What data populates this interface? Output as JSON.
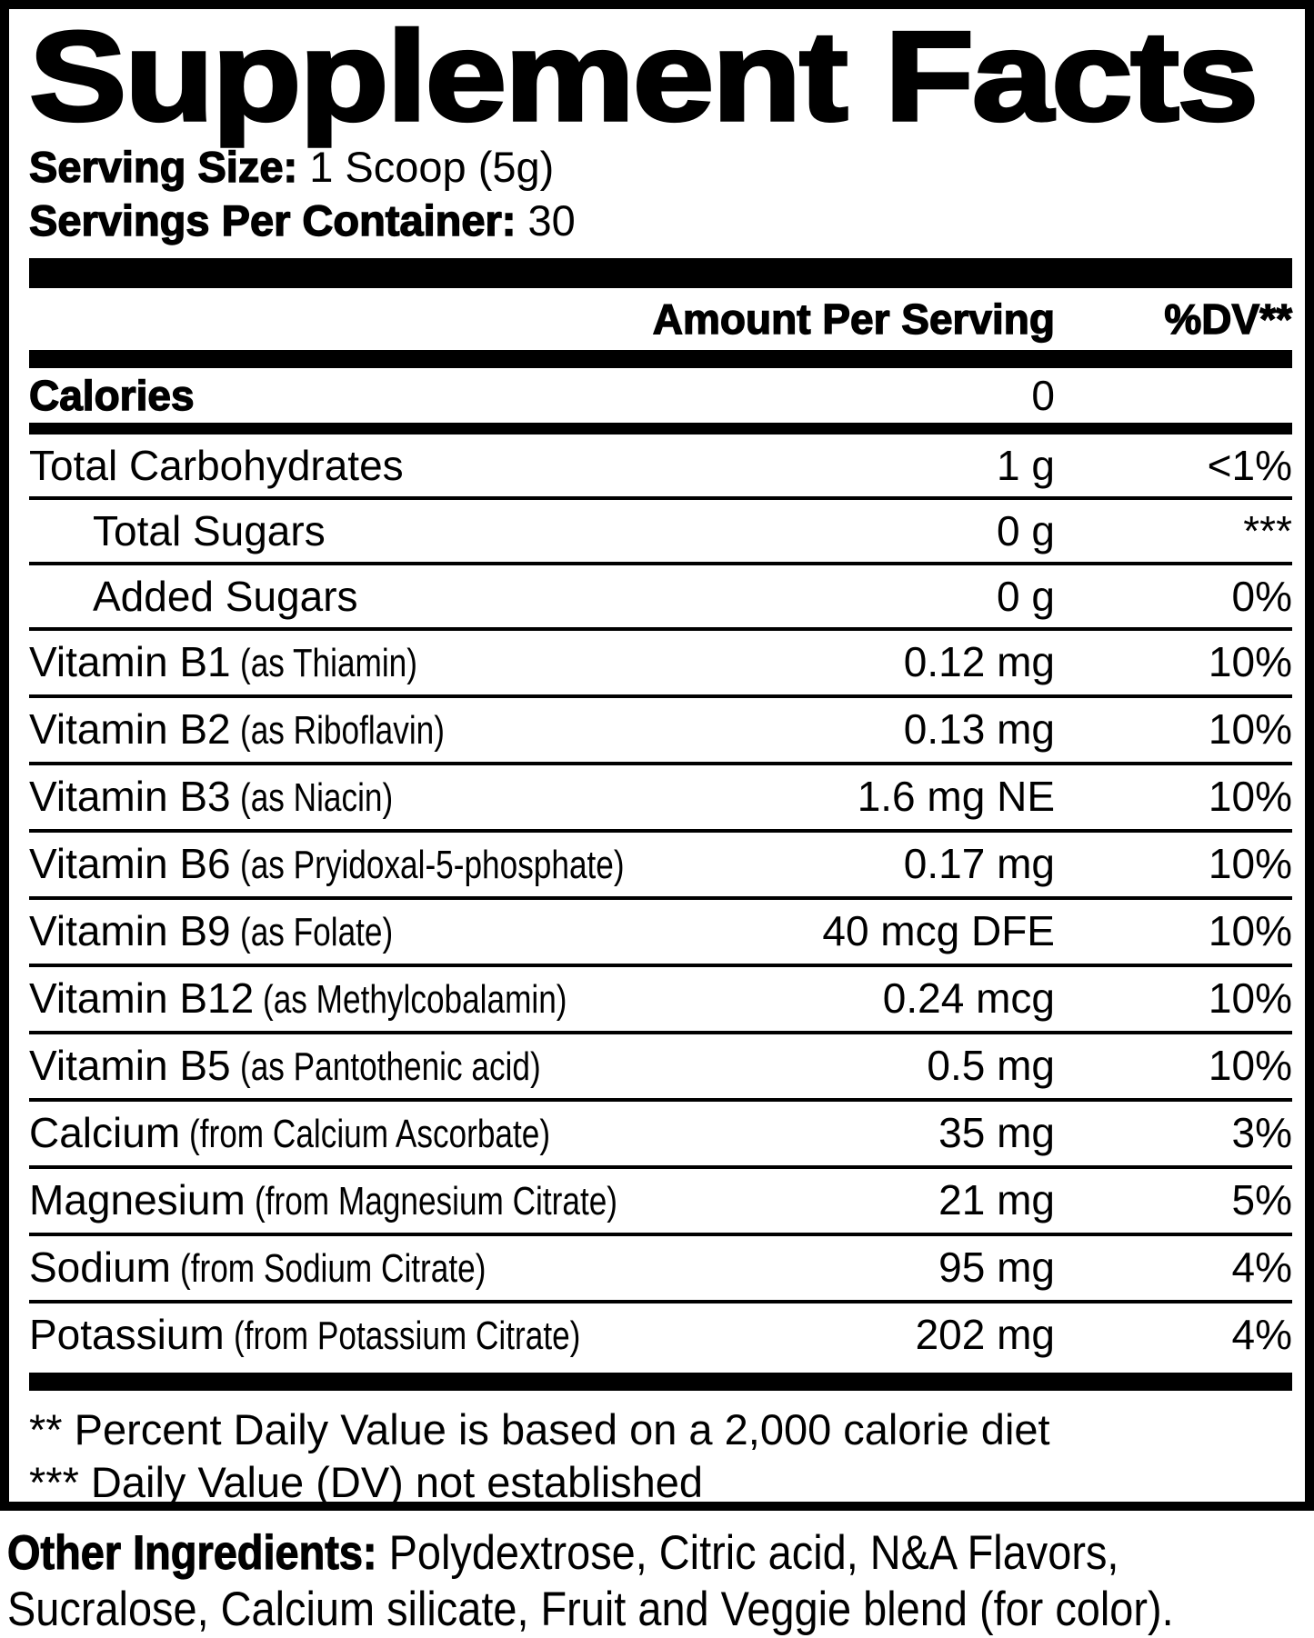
{
  "colors": {
    "text": "#000000",
    "background": "#ffffff"
  },
  "label": {
    "title": "Supplement Facts",
    "serving_size_label": "Serving Size:",
    "serving_size_value": " 1 Scoop (5g)",
    "servings_label": "Servings Per Container:",
    "servings_value": " 30",
    "col_amount": "Amount Per Serving",
    "col_dv": "%DV**"
  },
  "table": {
    "rows": [
      {
        "name": "Calories",
        "amount": "0",
        "dv": ""
      },
      {
        "name": "Total Carbohydrates",
        "amount": "1 g",
        "dv": "<1%"
      },
      {
        "name": "Total Sugars",
        "amount": "0 g",
        "dv": "***"
      },
      {
        "name": "Added Sugars",
        "amount": "0 g",
        "dv": "0%"
      },
      {
        "name": "Vitamin B1",
        "paren": "(as Thiamin)",
        "amount": "0.12 mg",
        "dv": "10%"
      },
      {
        "name": "Vitamin B2",
        "paren": "(as Riboflavin)",
        "amount": "0.13 mg",
        "dv": "10%"
      },
      {
        "name": "Vitamin B3",
        "paren": "(as Niacin)",
        "amount": "1.6 mg NE",
        "dv": "10%"
      },
      {
        "name": "Vitamin B6",
        "paren": "(as Pryidoxal-5-phosphate)",
        "amount": "0.17 mg",
        "dv": "10%"
      },
      {
        "name": "Vitamin B9",
        "paren": "(as Folate)",
        "amount": "40 mcg DFE",
        "dv": "10%"
      },
      {
        "name": "Vitamin B12",
        "paren": "(as Methylcobalamin)",
        "amount": "0.24 mcg",
        "dv": "10%"
      },
      {
        "name": "Vitamin B5",
        "paren": "(as Pantothenic acid)",
        "amount": "0.5 mg",
        "dv": "10%"
      },
      {
        "name": "Calcium",
        "paren": "(from Calcium Ascorbate)",
        "amount": "35 mg",
        "dv": "3%"
      },
      {
        "name": "Magnesium",
        "paren": "(from Magnesium Citrate)",
        "amount": "21 mg",
        "dv": "5%"
      },
      {
        "name": "Sodium",
        "paren": "(from Sodium Citrate)",
        "amount": "95 mg",
        "dv": "4%"
      },
      {
        "name": "Potassium",
        "paren": "(from Potassium Citrate)",
        "amount": "202 mg",
        "dv": "4%"
      }
    ]
  },
  "footnotes": {
    "dv_basis": "** Percent Daily Value is based on a 2,000 calorie diet",
    "dv_not_established": "*** Daily Value (DV) not established"
  },
  "other_ingredients": {
    "label": "Other Ingredients:",
    "line1_rest": " Polydextrose, Citric acid, N&A Flavors,",
    "line2": "Sucralose, Calcium silicate, Fruit and Veggie blend (for color)."
  }
}
